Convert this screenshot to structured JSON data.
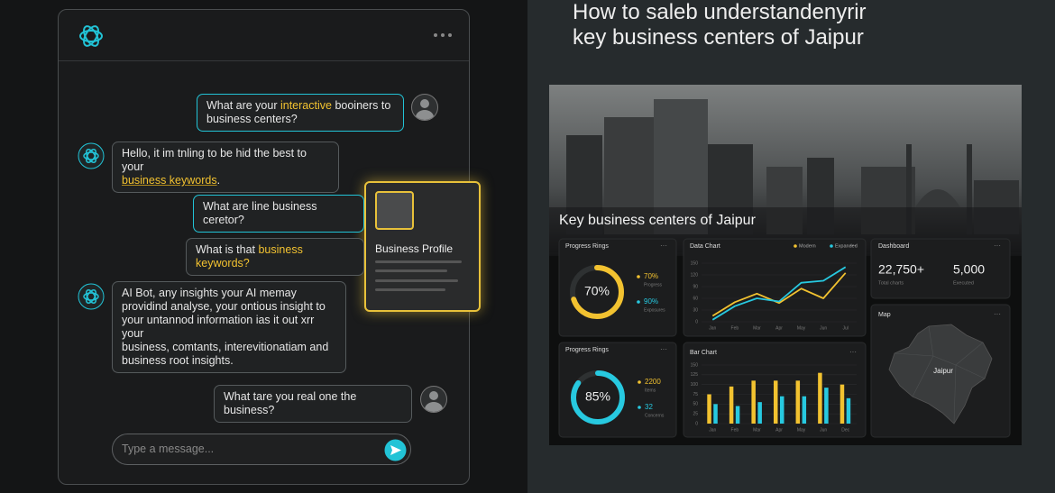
{
  "chat": {
    "messages": [
      {
        "color": "#22c3d6",
        "parts": [
          {
            "text": "What are your "
          },
          {
            "text": "interactive",
            "hl": true
          },
          {
            "text": " booiners to\nbusiness centers?"
          }
        ]
      },
      {
        "color": "#555a5c",
        "parts": [
          {
            "text": "Hello, it im tnling to be hid the best to your\n"
          },
          {
            "text": "business keywords",
            "hl": true
          },
          {
            "text": "."
          }
        ]
      },
      {
        "color": "#22c3d6",
        "parts": [
          {
            "text": "What are line business ceretor?"
          }
        ]
      },
      {
        "color": "#555a5c",
        "parts": [
          {
            "text": "What is that "
          },
          {
            "text": "business keywords?",
            "hl": true
          }
        ]
      },
      {
        "color": "#555a5c",
        "parts": [
          {
            "text": "AI Bot, any insights your AI memay\nprovidind analyse, your ontious insight to\nyour untannod information ias it out xrr your\nbusiness, comtants, interevitionatiam and\nbusiness root insights."
          }
        ]
      },
      {
        "color": "#555a5c",
        "parts": [
          {
            "text": "What tare you real one the business?"
          }
        ]
      }
    ],
    "input_placeholder": "Type a message..."
  },
  "popup": {
    "title": "Business Profile"
  },
  "page": {
    "title_lines": [
      "How to saleb understandenyrir",
      "key business centers of Jaipur"
    ]
  },
  "dashboard": {
    "photo_title": "Key business centers of Jaipur",
    "rings": [
      {
        "title": "Progress Rings",
        "value": 70,
        "label": "70%",
        "color": "#f2c230",
        "legend": [
          {
            "value": "70%",
            "label": "Progress",
            "color": "#f2c230"
          },
          {
            "value": "90%",
            "label": "Exposures",
            "color": "#27c9e0"
          }
        ]
      },
      {
        "title": "Progress Rings",
        "value": 85,
        "label": "85%",
        "color": "#27c9e0",
        "legend": [
          {
            "value": "2200",
            "label": "Items",
            "color": "#f2c230"
          },
          {
            "value": "32",
            "label": "Concerns",
            "color": "#27c9e0"
          }
        ]
      }
    ],
    "line_chart": {
      "title": "Data Chart",
      "categories": [
        "Jan",
        "Feb",
        "Mar",
        "Apr",
        "May",
        "Jun",
        "Jul"
      ],
      "series": [
        {
          "name": "Modern",
          "color": "#f2c230",
          "values": [
            15,
            50,
            72,
            48,
            85,
            60,
            125
          ]
        },
        {
          "name": "Expanded",
          "color": "#27c9e0",
          "values": [
            5,
            40,
            60,
            52,
            100,
            105,
            140
          ]
        }
      ],
      "ylim": [
        0,
        150
      ],
      "yticks": [
        0,
        30,
        60,
        90,
        120,
        150
      ]
    },
    "bar_chart": {
      "title": "Bar Chart",
      "categories": [
        "Jan",
        "Feb",
        "Mar",
        "Apr",
        "May",
        "Jun",
        "Dec"
      ],
      "series": [
        {
          "color": "#f2c230",
          "values": [
            75,
            95,
            110,
            110,
            110,
            130,
            100
          ]
        },
        {
          "color": "#27c9e0",
          "values": [
            50,
            45,
            55,
            70,
            70,
            92,
            65
          ]
        }
      ],
      "ylim": [
        0,
        150
      ],
      "yticks": [
        0,
        25,
        50,
        75,
        100,
        125,
        150
      ]
    },
    "stats": {
      "title": "Dashboard",
      "items": [
        {
          "value": "22,750+",
          "label": "Total charts"
        },
        {
          "value": "5,000",
          "label": "Executed"
        }
      ]
    },
    "map": {
      "title": "Map",
      "label": "Jaipur"
    }
  }
}
